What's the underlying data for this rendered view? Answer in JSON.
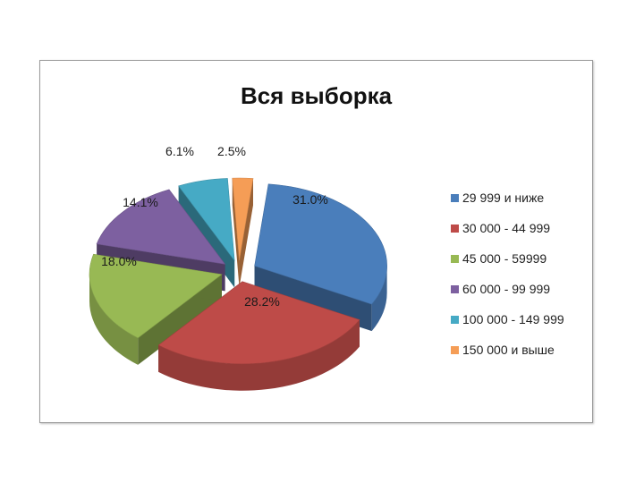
{
  "chart_data": {
    "type": "pie",
    "title": "Вся выборка",
    "three_d": true,
    "exploded": true,
    "legend_position": "right",
    "categories": [
      "29 999 и ниже",
      "30 000 - 44 999",
      "45 000 - 59999",
      "60 000 - 99 999",
      "100 000 - 149 999",
      "150 000 и выше"
    ],
    "values": [
      31.0,
      28.2,
      18.0,
      14.1,
      6.1,
      2.5
    ],
    "labels": [
      "31.0%",
      "28.2%",
      "18.0%",
      "14.1%",
      "6.1%",
      "2.5%"
    ],
    "colors": [
      "#4A7EBB",
      "#BE4B48",
      "#98B954",
      "#7D60A0",
      "#46AAC5",
      "#F59D56"
    ]
  }
}
